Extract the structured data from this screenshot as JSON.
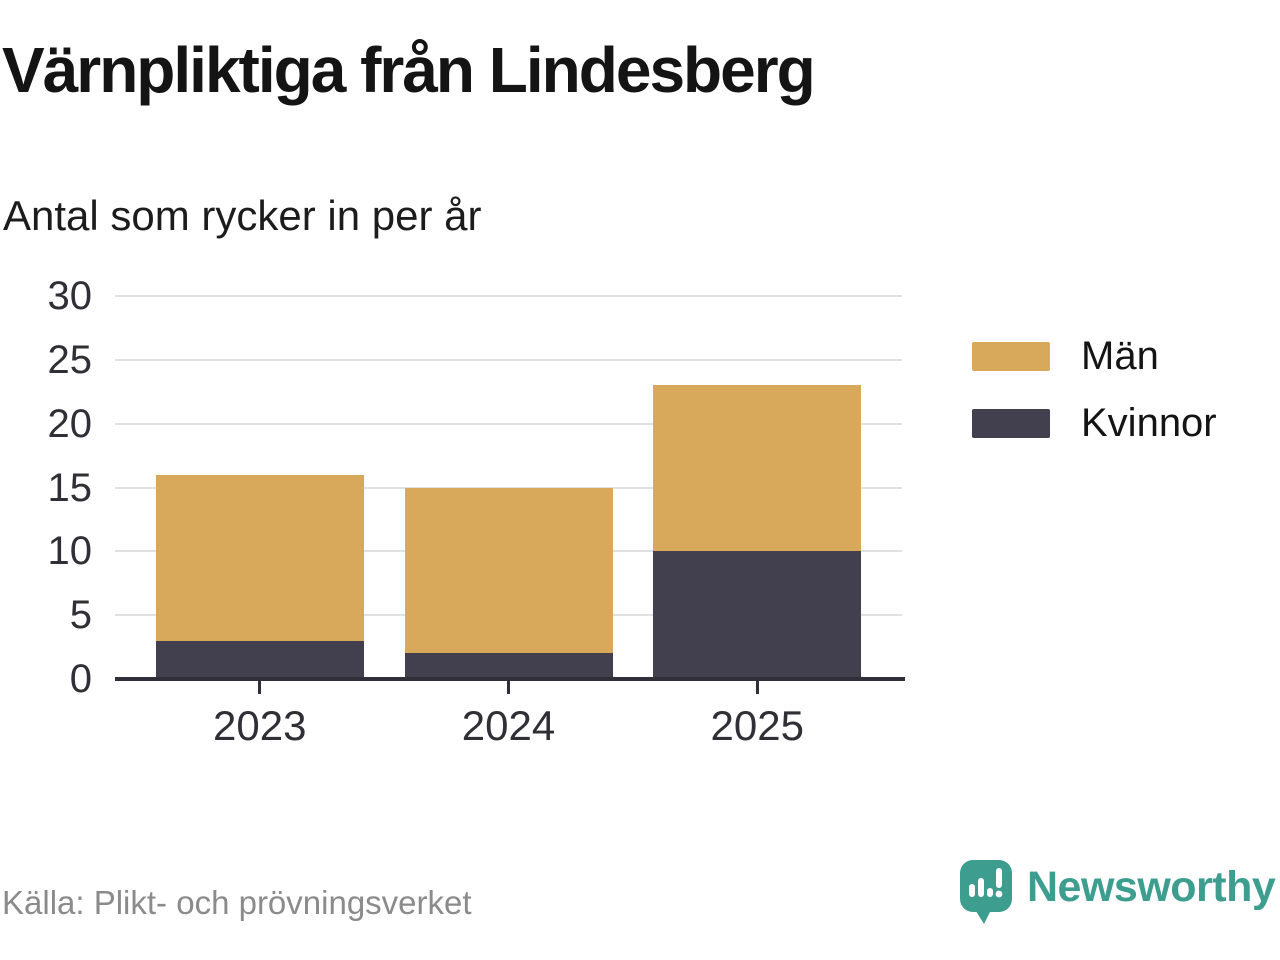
{
  "title": "Värnpliktiga från Lindesberg",
  "subtitle": "Antal som rycker in per år",
  "source": "Källa: Plikt- och prövningsverket",
  "brand": {
    "name": "Newsworthy",
    "color": "#3d9e8f"
  },
  "colors": {
    "men": "#d8a95a",
    "women": "#423f4e",
    "gridline": "#e1e1e1",
    "axis": "#302e38"
  },
  "chart_data": {
    "type": "bar",
    "stacked": true,
    "title": "Värnpliktiga från Lindesberg",
    "subtitle": "Antal som rycker in per år",
    "categories": [
      "2023",
      "2024",
      "2025"
    ],
    "series": [
      {
        "name": "Kvinnor",
        "color": "#423f4e",
        "values": [
          3,
          2,
          10
        ]
      },
      {
        "name": "Män",
        "color": "#d8a95a",
        "values": [
          13,
          13,
          13
        ]
      }
    ],
    "totals": [
      16,
      15,
      23
    ],
    "legend": [
      {
        "label": "Män",
        "color": "#d8a95a"
      },
      {
        "label": "Kvinnor",
        "color": "#423f4e"
      }
    ],
    "legend_position": "right",
    "xlabel": "",
    "ylabel": "",
    "ylim": [
      0,
      30
    ],
    "yticks": [
      0,
      5,
      10,
      15,
      20,
      25,
      30
    ],
    "grid": true
  }
}
